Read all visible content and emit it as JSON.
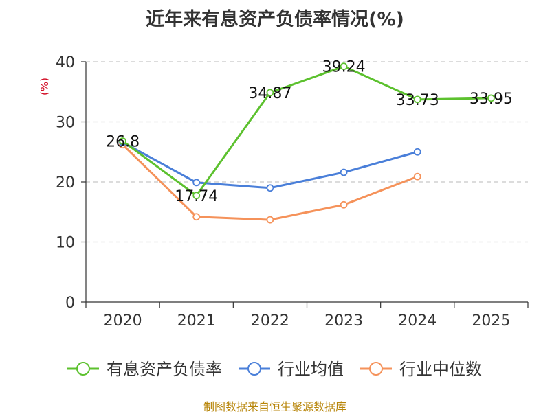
{
  "chart_data": {
    "type": "line",
    "title": "近年来有息资产负债率情况(%)",
    "ylabel": "(%)",
    "xlabel": "",
    "categories": [
      "2020",
      "2021",
      "2022",
      "2023",
      "2024",
      "2025"
    ],
    "ylim": [
      0,
      40
    ],
    "yticks": [
      0,
      10,
      20,
      30,
      40
    ],
    "grid": true,
    "legend_position": "bottom",
    "series": [
      {
        "name": "有息资产负债率",
        "color": "#5cc12e",
        "values": [
          26.8,
          17.74,
          34.87,
          39.24,
          33.73,
          33.95
        ],
        "labels": [
          "26.8",
          "17.74",
          "34.87",
          "39.24",
          "33.73",
          "33.95"
        ]
      },
      {
        "name": "行业均值",
        "color": "#4a7fd9",
        "values": [
          26.6,
          19.9,
          19.0,
          21.6,
          25.0,
          null
        ]
      },
      {
        "name": "行业中位数",
        "color": "#f5925a",
        "values": [
          26.2,
          14.2,
          13.7,
          16.2,
          20.9,
          null
        ]
      }
    ]
  },
  "source": "制图数据来自恒生聚源数据库"
}
